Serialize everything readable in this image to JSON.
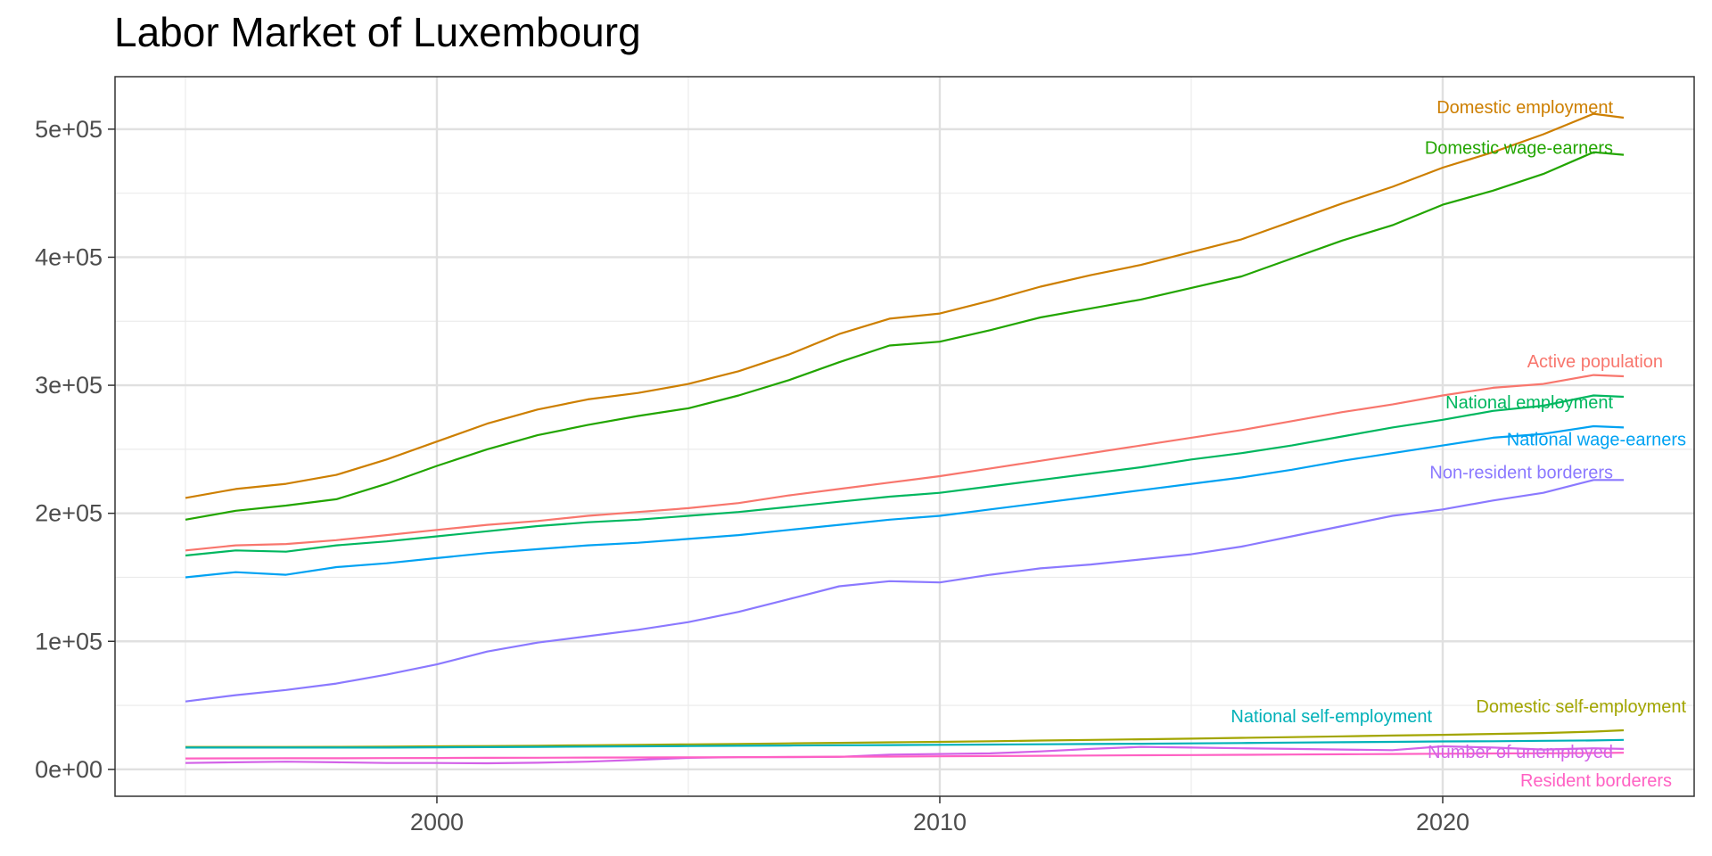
{
  "chart_data": {
    "type": "line",
    "title": "Labor Market of Luxembourg",
    "xlabel": "",
    "ylabel": "",
    "xlim": [
      1993.6,
      2025.0
    ],
    "ylim": [
      -21000,
      541000
    ],
    "x_ticks": [
      2000,
      2010,
      2020
    ],
    "x_tick_labels": [
      "2000",
      "2010",
      "2020"
    ],
    "y_ticks": [
      0,
      100000,
      200000,
      300000,
      400000,
      500000
    ],
    "y_tick_labels": [
      "0e+00",
      "1e+05",
      "2e+05",
      "3e+05",
      "4e+05",
      "5e+05"
    ],
    "grid": true,
    "legend": "direct labels at series ends",
    "x": [
      1995.0,
      1996.0,
      1997.0,
      1998.0,
      1999.0,
      2000.0,
      2001.0,
      2002.0,
      2003.0,
      2004.0,
      2005.0,
      2006.0,
      2007.0,
      2008.0,
      2009.0,
      2010.0,
      2011.0,
      2012.0,
      2013.0,
      2014.0,
      2015.0,
      2016.0,
      2017.0,
      2018.0,
      2019.0,
      2020.0,
      2021.0,
      2022.0,
      2023.0,
      2023.6
    ],
    "series": [
      {
        "name": "Domestic employment",
        "color": "#CD7F00",
        "values": [
          212000,
          219000,
          223000,
          230000,
          242000,
          256000,
          270000,
          281000,
          289000,
          294000,
          301000,
          311000,
          324000,
          340000,
          352000,
          356000,
          366000,
          377000,
          386000,
          394000,
          404000,
          414000,
          428000,
          442000,
          455000,
          470000,
          482000,
          496000,
          512000,
          509000
        ]
      },
      {
        "name": "Domestic wage-earners",
        "color": "#22A500",
        "values": [
          195000,
          202000,
          206000,
          211000,
          223000,
          237000,
          250000,
          261000,
          269000,
          276000,
          282000,
          292000,
          304000,
          318000,
          331000,
          334000,
          343000,
          353000,
          360000,
          367000,
          376000,
          385000,
          399000,
          413000,
          425000,
          441000,
          452000,
          465000,
          482000,
          480000
        ]
      },
      {
        "name": "Active population",
        "color": "#F8766D",
        "values": [
          171000,
          175000,
          176000,
          179000,
          183000,
          187000,
          191000,
          194000,
          198000,
          201000,
          204000,
          208000,
          214000,
          219000,
          224000,
          229000,
          235000,
          241000,
          247000,
          253000,
          259000,
          265000,
          272000,
          279000,
          285000,
          292000,
          298000,
          301000,
          308000,
          307000
        ]
      },
      {
        "name": "National employment",
        "color": "#00B75F",
        "values": [
          167000,
          171000,
          170000,
          175000,
          178000,
          182000,
          186000,
          190000,
          193000,
          195000,
          198000,
          201000,
          205000,
          209000,
          213000,
          216000,
          221000,
          226000,
          231000,
          236000,
          242000,
          247000,
          253000,
          260000,
          267000,
          273000,
          280000,
          284000,
          292000,
          291000
        ]
      },
      {
        "name": "National wage-earners",
        "color": "#00A2F2",
        "values": [
          150000,
          154000,
          152000,
          158000,
          161000,
          165000,
          169000,
          172000,
          175000,
          177000,
          180000,
          183000,
          187000,
          191000,
          195000,
          198000,
          203000,
          208000,
          213000,
          218000,
          223000,
          228000,
          234000,
          241000,
          247000,
          253000,
          259000,
          262000,
          268000,
          267000
        ]
      },
      {
        "name": "Non-resident borderers",
        "color": "#8B79FF",
        "values": [
          53000,
          58000,
          62000,
          67000,
          74000,
          82000,
          92000,
          99000,
          104000,
          109000,
          115000,
          123000,
          133000,
          143000,
          147000,
          146000,
          152000,
          157000,
          160000,
          164000,
          168000,
          174000,
          182000,
          190000,
          198000,
          203000,
          210000,
          216000,
          226000,
          226000
        ]
      },
      {
        "name": "Domestic self-employment",
        "color": "#A2A500",
        "values": [
          17500,
          17500,
          17500,
          17600,
          17800,
          18000,
          18200,
          18500,
          18800,
          19100,
          19500,
          19900,
          20300,
          20700,
          21100,
          21500,
          22000,
          22500,
          23000,
          23500,
          24000,
          24600,
          25200,
          25800,
          26400,
          27000,
          27700,
          28400,
          29500,
          30500
        ]
      },
      {
        "name": "National self-employment",
        "color": "#00B1B8",
        "values": [
          17000,
          17000,
          17000,
          17000,
          17000,
          17200,
          17400,
          17600,
          17800,
          18000,
          18200,
          18400,
          18600,
          18800,
          19000,
          19200,
          19400,
          19600,
          19800,
          20000,
          20300,
          20600,
          20900,
          21200,
          21500,
          21800,
          22000,
          22300,
          22600,
          23000
        ]
      },
      {
        "name": "Number of unemployed",
        "color": "#D262E8",
        "values": [
          5000,
          5500,
          6000,
          5500,
          5000,
          5000,
          4800,
          5200,
          6000,
          7500,
          9000,
          9500,
          9500,
          9800,
          11500,
          12000,
          12500,
          14000,
          16000,
          17500,
          17000,
          16500,
          16000,
          15500,
          15000,
          18000,
          17000,
          15500,
          16500,
          16000
        ]
      },
      {
        "name": "Resident borderers",
        "color": "#FF61C3",
        "values": [
          8500,
          8600,
          8700,
          8700,
          8800,
          8900,
          9000,
          9100,
          9200,
          9300,
          9400,
          9500,
          9700,
          9900,
          10000,
          10200,
          10400,
          10600,
          10800,
          11000,
          11200,
          11400,
          11600,
          11800,
          12000,
          12200,
          12400,
          12600,
          12800,
          13000
        ]
      }
    ]
  }
}
